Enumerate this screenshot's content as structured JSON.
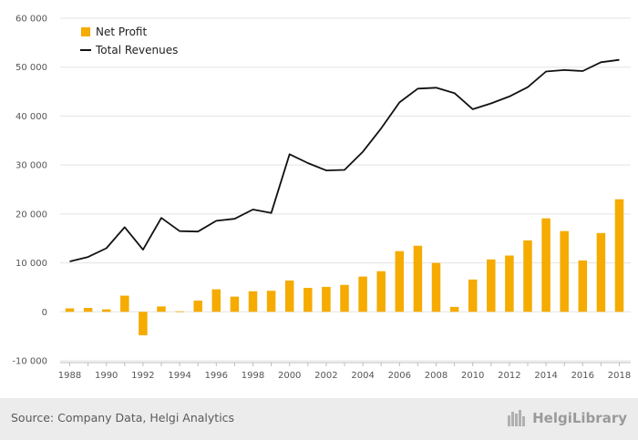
{
  "chart_data": {
    "type": "bar",
    "x": [
      1988,
      1989,
      1990,
      1991,
      1992,
      1993,
      1994,
      1995,
      1996,
      1997,
      1998,
      1999,
      2000,
      2001,
      2002,
      2003,
      2004,
      2005,
      2006,
      2007,
      2008,
      2009,
      2010,
      2011,
      2012,
      2013,
      2014,
      2015,
      2016,
      2017,
      2018
    ],
    "x_tick_labels": [
      "1988",
      "1990",
      "1992",
      "1994",
      "1996",
      "1998",
      "2000",
      "2002",
      "2004",
      "2006",
      "2008",
      "2010",
      "2012",
      "2014",
      "2016",
      "2018"
    ],
    "y_tick_labels": [
      "-10 000",
      "0",
      "10 000",
      "20 000",
      "30 000",
      "40 000",
      "50 000",
      "60 000"
    ],
    "ylim": [
      -10000,
      60000
    ],
    "grid": true,
    "legend_position": "top-left",
    "series": [
      {
        "name": "Net Profit",
        "type": "bar",
        "color": "#f5ab00",
        "values": [
          700,
          800,
          500,
          3300,
          -4800,
          1100,
          100,
          2300,
          4600,
          3100,
          4200,
          4300,
          6400,
          4900,
          5100,
          5500,
          7200,
          8300,
          12400,
          13500,
          10000,
          1000,
          6600,
          10700,
          11500,
          14600,
          19100,
          16500,
          10500,
          16100,
          23000
        ]
      },
      {
        "name": "Total Revenues",
        "type": "line",
        "color": "#111111",
        "values": [
          10300,
          11200,
          13000,
          17300,
          12700,
          19200,
          16500,
          16400,
          18600,
          19000,
          20900,
          20200,
          32200,
          30400,
          28900,
          29000,
          32700,
          37500,
          42800,
          45600,
          45800,
          44700,
          41400,
          42600,
          44000,
          45900,
          49100,
          49400,
          49200,
          51000,
          51500
        ]
      }
    ]
  },
  "footer": {
    "source": "Source: Company Data, Helgi Analytics",
    "logo_text": "HelgiLibrary"
  },
  "logo_icon": "helgi-library-icon"
}
